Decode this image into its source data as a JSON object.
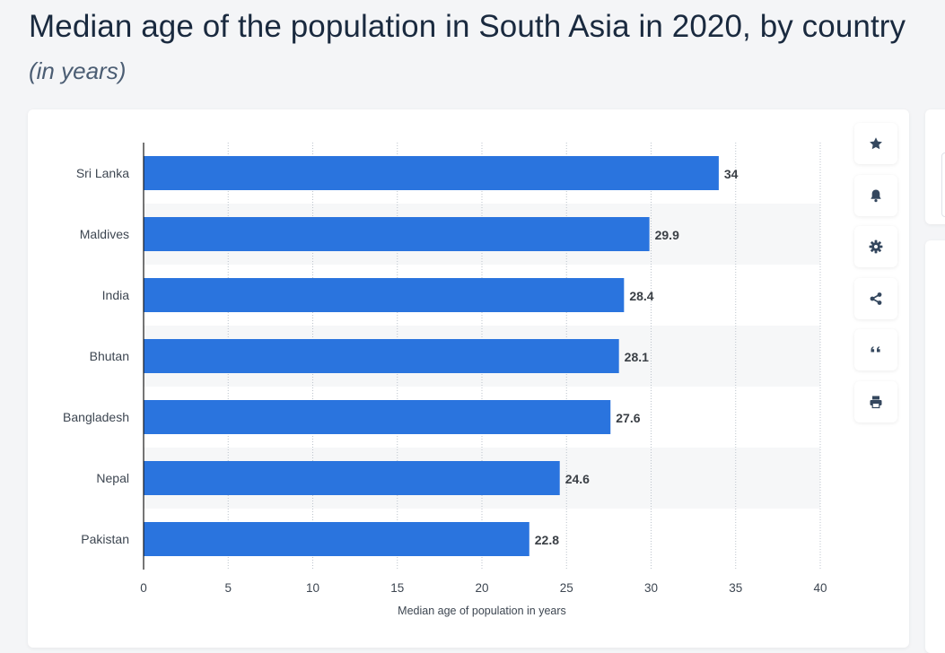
{
  "header": {
    "title": "Median age of the population in South Asia in 2020, by country",
    "subtitle": "(in years)"
  },
  "toolbar": {
    "buttons": [
      {
        "name": "favorite",
        "icon": "star-icon"
      },
      {
        "name": "notification",
        "icon": "bell-icon"
      },
      {
        "name": "settings",
        "icon": "gear-icon"
      },
      {
        "name": "share",
        "icon": "share-icon"
      },
      {
        "name": "cite",
        "icon": "quote-icon"
      },
      {
        "name": "print",
        "icon": "print-icon"
      }
    ]
  },
  "colors": {
    "bar": "#2a74de",
    "band": "#f6f7f8",
    "grid": "#bcc3cc",
    "axis": "#1a1a1a",
    "label": "#3d4651",
    "value": "#3a3f45"
  },
  "chart_data": {
    "type": "bar",
    "orientation": "horizontal",
    "categories": [
      "Sri Lanka",
      "Maldives",
      "India",
      "Bhutan",
      "Bangladesh",
      "Nepal",
      "Pakistan"
    ],
    "values": [
      34,
      29.9,
      28.4,
      28.1,
      27.6,
      24.6,
      22.8
    ],
    "value_labels": [
      "34",
      "29.9",
      "28.4",
      "28.1",
      "27.6",
      "24.6",
      "22.8"
    ],
    "xlim": [
      0,
      40
    ],
    "xticks": [
      0,
      5,
      10,
      15,
      20,
      25,
      30,
      35,
      40
    ],
    "xlabel": "Median age of population in years",
    "ylabel": "",
    "grid": "vertical dotted",
    "legend": "none"
  }
}
